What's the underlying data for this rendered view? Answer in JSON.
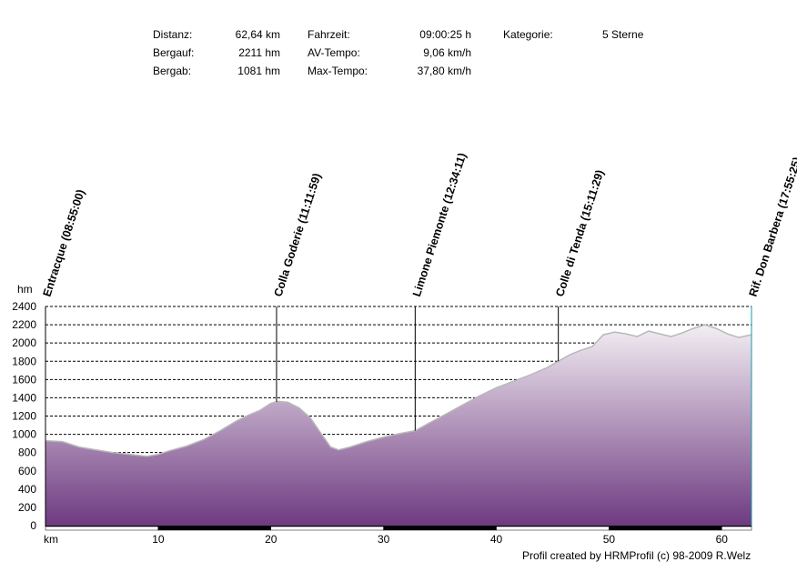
{
  "stats": {
    "distanz_label": "Distanz:",
    "distanz_value": "62,64 km",
    "bergauf_label": "Bergauf:",
    "bergauf_value": "2211 hm",
    "bergab_label": "Bergab:",
    "bergab_value": "1081 hm",
    "fahrzeit_label": "Fahrzeit:",
    "fahrzeit_value": "09:00:25 h",
    "avtempo_label": "AV-Tempo:",
    "avtempo_value": "9,06 km/h",
    "maxtempo_label": "Max-Tempo:",
    "maxtempo_value": "37,80 km/h",
    "kategorie_label": "Kategorie:",
    "kategorie_value": "5 Sterne"
  },
  "footer": {
    "credit": "Profil created by HRMProfil (c) 98-2009 R.Welz"
  },
  "colors": {
    "fill_top": "#f3eef4",
    "fill_bottom": "#6e3a80",
    "line": "#b8b8b8",
    "grid": "#000000"
  },
  "chart_data": {
    "type": "area",
    "xlabel": "km",
    "ylabel": "hm",
    "xlim": [
      0,
      62.64
    ],
    "ylim": [
      0,
      2400
    ],
    "x_ticks": [
      10,
      20,
      30,
      40,
      50,
      60
    ],
    "y_ticks": [
      0,
      200,
      400,
      600,
      800,
      1000,
      1200,
      1400,
      1600,
      1800,
      2000,
      2200,
      2400
    ],
    "x": [
      0,
      1.5,
      3,
      4.5,
      6,
      7.5,
      9,
      10,
      11,
      12.5,
      14,
      15.5,
      17,
      18,
      19,
      20,
      20.7,
      21.5,
      22.5,
      23.5,
      24.5,
      25.3,
      26,
      27,
      28.5,
      30,
      31.5,
      32.8,
      34,
      35.5,
      37,
      38.5,
      40,
      41.5,
      43,
      44.5,
      45.5,
      46.5,
      47.5,
      48.5,
      49.5,
      50.5,
      51.5,
      52.5,
      53.5,
      54.5,
      55.5,
      56.5,
      57.5,
      58.5,
      59.5,
      60.5,
      61.5,
      62.64
    ],
    "y": [
      930,
      920,
      860,
      830,
      800,
      780,
      760,
      780,
      820,
      870,
      940,
      1040,
      1150,
      1210,
      1260,
      1340,
      1360,
      1350,
      1290,
      1180,
      1000,
      860,
      830,
      860,
      920,
      970,
      1010,
      1040,
      1120,
      1220,
      1320,
      1420,
      1510,
      1580,
      1650,
      1730,
      1800,
      1870,
      1920,
      1960,
      2090,
      2120,
      2100,
      2070,
      2130,
      2100,
      2070,
      2110,
      2160,
      2200,
      2160,
      2100,
      2060,
      2090
    ],
    "waypoints": [
      {
        "label": "Entracque (08:55:00)",
        "km": 0
      },
      {
        "label": "Colla Goderie (11:11:59)",
        "km": 20.5
      },
      {
        "label": "Limone Piemonte (12:34:11)",
        "km": 32.8
      },
      {
        "label": "Colle di Tenda (15:11:29)",
        "km": 45.5
      },
      {
        "label": "Rif. Don Barbera (17:55:25)",
        "km": 62.64
      }
    ]
  }
}
